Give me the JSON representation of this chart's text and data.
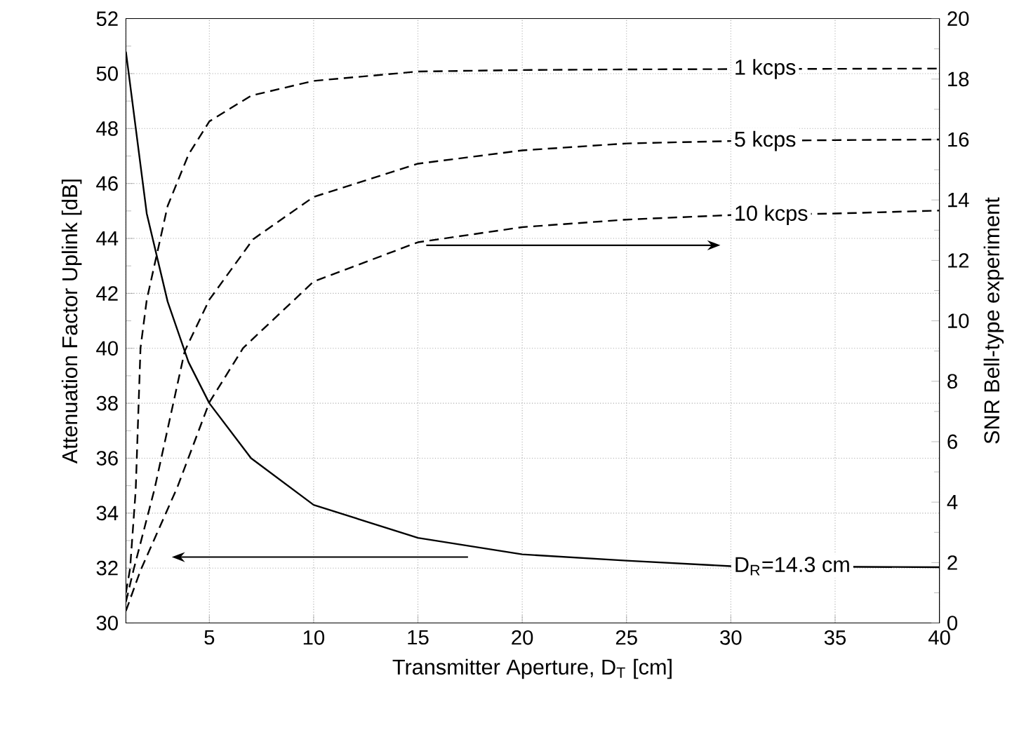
{
  "chart_data": {
    "type": "line",
    "xlabel": "Transmitter Aperture, D$_{T}$ [cm]",
    "ylabel": "Attenuation Factor Uplink [dB]",
    "y2label": "SNR Bell-type experiment",
    "xlim": [
      1,
      40
    ],
    "xticks": [
      {
        "value": 1,
        "label": null
      },
      5,
      10,
      15,
      20,
      25,
      30,
      35,
      40
    ],
    "ylim": [
      30,
      52
    ],
    "yticks": [
      30,
      32,
      34,
      36,
      38,
      40,
      42,
      44,
      46,
      48,
      50,
      52
    ],
    "y2lim": [
      0,
      20
    ],
    "y2ticks": [
      0,
      2,
      4,
      6,
      8,
      10,
      12,
      14,
      16,
      18,
      20
    ],
    "grid": true,
    "series": [
      {
        "name": "D$_{R}$=14.3 cm",
        "color": "#000000",
        "line_style": "solid",
        "x": [
          1,
          2,
          3,
          4,
          5,
          7,
          10,
          15,
          20,
          25,
          30,
          35,
          40
        ],
        "values": [
          50.8,
          44.9,
          41.7,
          39.5,
          38.0,
          36.0,
          34.3,
          33.1,
          32.5,
          32.27,
          32.07,
          null,
          32.03
        ]
      },
      {
        "name": "1 kcps",
        "color": "#000000",
        "line_style": "dashed",
        "axis": "y2",
        "x": [
          1,
          1.2,
          1.47,
          1.7,
          2,
          3,
          4,
          5,
          7,
          10,
          15,
          20,
          25,
          30,
          35,
          40
        ],
        "values": [
          1.0,
          1.8,
          4.4,
          9.1,
          10.7,
          13.8,
          15.5,
          16.6,
          17.45,
          17.94,
          18.25,
          18.3,
          18.32,
          18.33,
          18.34,
          18.35
        ]
      },
      {
        "name": "5 kcps",
        "color": "#000000",
        "line_style": "dashed",
        "axis": "y2",
        "x": [
          1,
          1.36,
          2.36,
          3.82,
          5,
          7.1,
          10,
          15,
          20,
          25,
          30,
          35,
          40
        ],
        "values": [
          0.7,
          1.74,
          4.4,
          9.0,
          10.7,
          12.7,
          14.1,
          15.2,
          15.64,
          15.87,
          15.95,
          15.98,
          16.0
        ]
      },
      {
        "name": "10 kcps",
        "color": "#000000",
        "line_style": "dashed",
        "axis": "y2",
        "x": [
          1,
          1.7,
          3.47,
          5,
          6.62,
          10,
          15,
          20,
          25,
          30,
          35,
          40
        ],
        "values": [
          0.4,
          1.74,
          4.5,
          7.3,
          9.1,
          11.3,
          12.6,
          13.1,
          13.35,
          13.5,
          13.55,
          13.65
        ]
      }
    ]
  }
}
